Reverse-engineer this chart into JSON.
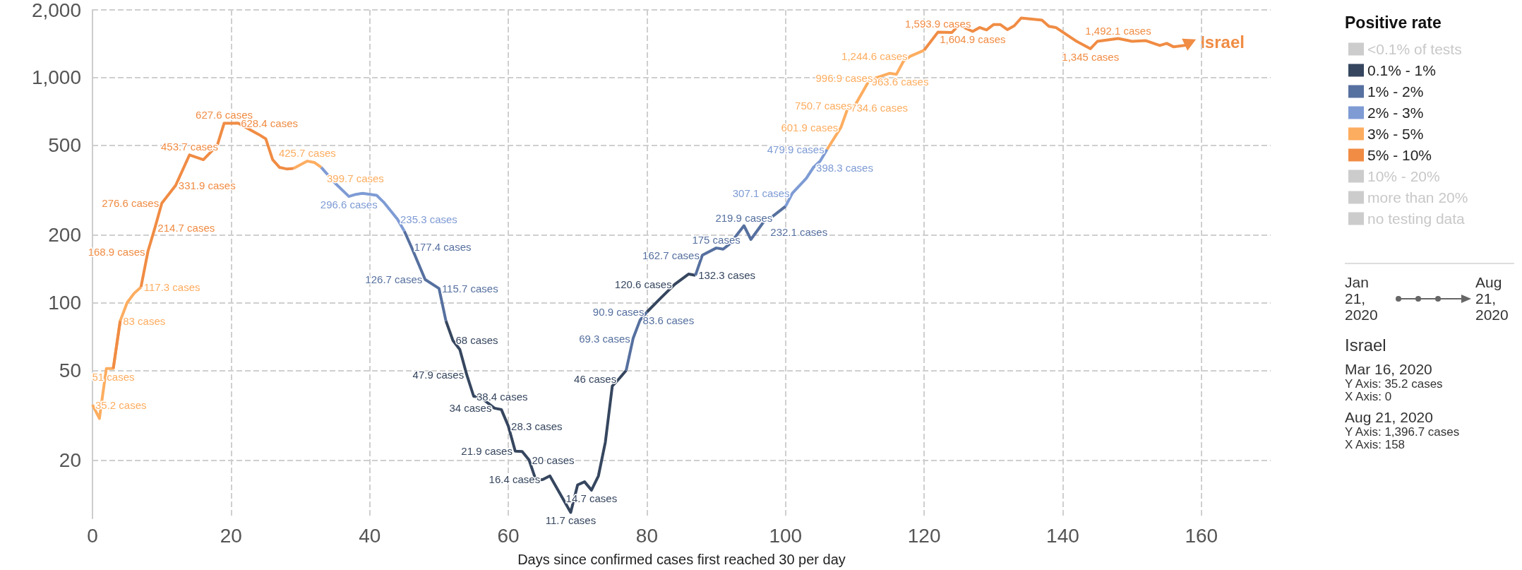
{
  "chart_data": {
    "type": "line",
    "xlabel": "Days since confirmed cases first reached 30 per day",
    "legend_title": "Positive rate",
    "legend": "right",
    "log": true,
    "grid": true,
    "xlim": [
      0,
      170
    ],
    "xticks": [
      0,
      20,
      40,
      60,
      80,
      100,
      120,
      140,
      160
    ],
    "ylim": [
      11,
      2000
    ],
    "yticks": [
      20,
      50,
      100,
      200,
      500,
      {
        "value": 1000,
        "label": "1,000"
      },
      {
        "value": 2000,
        "label": "2,000"
      }
    ],
    "series": [
      {
        "name": "<0.1% of tests",
        "color": "#cccccc"
      },
      {
        "name": "0.1% - 1%",
        "color": "#36465f",
        "x": [
          51,
          52,
          53,
          54,
          55,
          56,
          58,
          59,
          60,
          61,
          62,
          63,
          64,
          65,
          66,
          69,
          70,
          71,
          72,
          73,
          74,
          75,
          76,
          77,
          78,
          80,
          82,
          84,
          86,
          87
        ],
        "values": [
          83,
          68,
          62,
          47.9,
          38.4,
          38,
          34,
          33.5,
          28.3,
          21.9,
          21.8,
          20,
          16.2,
          16.4,
          17,
          11.7,
          15.5,
          16,
          14.7,
          17,
          24,
          42.6,
          46,
          50,
          null,
          90.9,
          105,
          120.6,
          134,
          132.3
        ],
        "value_labels": [
          null,
          "68 cases",
          null,
          "47.9 cases",
          "38.4 cases",
          null,
          "34 cases",
          null,
          "28.3 cases",
          "21.9 cases",
          null,
          "20 cases",
          null,
          "16.4 cases",
          null,
          "11.7 cases",
          null,
          null,
          "14.7 cases",
          null,
          null,
          null,
          "46 cases",
          null,
          null,
          null,
          null,
          "120.6 cases",
          null,
          "132.3 cases"
        ]
      },
      {
        "name": "1% - 2%",
        "color": "#56709f",
        "x": [
          45,
          46,
          47,
          48,
          50,
          51,
          60,
          77,
          78,
          79,
          80,
          84,
          87,
          88,
          90,
          91,
          92,
          94,
          95,
          97,
          98,
          100
        ],
        "values": [
          208,
          177.4,
          150,
          126.7,
          115.7,
          83,
          null,
          50,
          69.3,
          83.6,
          90.9,
          null,
          132.3,
          162.7,
          175,
          173,
          183,
          219.9,
          191,
          232.1,
          240,
          268
        ],
        "value_labels": [
          null,
          "177.4 cases",
          null,
          "126.7 cases",
          "115.7 cases",
          null,
          null,
          null,
          "69.3 cases",
          "83.6 cases",
          "90.9 cases",
          null,
          null,
          "162.7 cases",
          "175 cases",
          null,
          null,
          "219.9 cases",
          null,
          "232.1 cases",
          null,
          null
        ]
      },
      {
        "name": "2% - 3%",
        "color": "#7e9bd4",
        "x": [
          33,
          35,
          37,
          38,
          39,
          41,
          42,
          44,
          45,
          70,
          100,
          101,
          103,
          104,
          105,
          106
        ],
        "values": [
          399.7,
          340,
          296.6,
          303,
          306,
          300,
          280,
          235.3,
          208,
          null,
          268,
          307.1,
          357,
          398.3,
          426,
          479.9
        ],
        "value_labels": [
          null,
          null,
          "296.6 cases",
          null,
          null,
          null,
          null,
          "235.3 cases",
          null,
          null,
          null,
          "307.1 cases",
          null,
          "398.3 cases",
          null,
          "479.9 cases"
        ]
      },
      {
        "name": "3% - 5%",
        "color": "#fdad60",
        "x": [
          0,
          1,
          2,
          3,
          4,
          5,
          6,
          7,
          16,
          29,
          31,
          32,
          33,
          70,
          106,
          108,
          109,
          110,
          112,
          113,
          115,
          116,
          117,
          118,
          120
        ],
        "values": [
          35.2,
          30.6,
          51,
          51,
          83,
          100,
          110,
          117.3,
          null,
          395,
          425.7,
          420,
          399.7,
          null,
          479.9,
          601.9,
          734.6,
          750.7,
          963.6,
          996.9,
          1045,
          1035,
          1180,
          1244.6,
          1324
        ],
        "value_labels": [
          "35.2 cases",
          null,
          null,
          "51 cases",
          "83 cases",
          null,
          null,
          "117.3 cases",
          null,
          null,
          "425.7 cases",
          null,
          "399.7 cases",
          null,
          null,
          "601.9 cases",
          "734.6 cases",
          "750.7 cases",
          "963.6 cases",
          "996.9 cases",
          null,
          null,
          null,
          "1,244.6 cases",
          null
        ]
      },
      {
        "name": "5% - 10%",
        "color": "#f08c44",
        "x": [
          3,
          4,
          6,
          7,
          8,
          9,
          10,
          12,
          14,
          16,
          18,
          19,
          20,
          21,
          24,
          25,
          26,
          27,
          28,
          29,
          70,
          120,
          122,
          124,
          125,
          127,
          128,
          129,
          130,
          131,
          132,
          133,
          134,
          137,
          138,
          139,
          142,
          144,
          145,
          148,
          150,
          152,
          154,
          155,
          156,
          158
        ],
        "values": [
          51,
          83,
          null,
          117.3,
          168.9,
          214.7,
          276.6,
          331.9,
          453.7,
          432,
          500,
          627.6,
          627,
          628.4,
          559,
          535,
          432,
          399,
          393,
          395,
          null,
          1324,
          1593.9,
          1587,
          1712,
          1604.9,
          1670,
          1630,
          1720,
          1720,
          1635,
          1700,
          1840,
          1800,
          1690,
          1670,
          1450,
          1345,
          1450,
          1492.1,
          1450,
          1460,
          1390,
          1420,
          1370,
          1396.7
        ],
        "value_labels": [
          null,
          null,
          null,
          null,
          "168.9 cases",
          "214.7 cases",
          "276.6 cases",
          "331.9 cases",
          "453.7 cases",
          null,
          null,
          "627.6 cases",
          null,
          "628.4 cases",
          null,
          null,
          null,
          null,
          null,
          null,
          null,
          null,
          "1,593.9 cases",
          null,
          null,
          "1,604.9 cases",
          null,
          null,
          null,
          null,
          null,
          null,
          null,
          null,
          null,
          null,
          null,
          "1,345 cases",
          null,
          "1,492.1 cases",
          null,
          null,
          null,
          null,
          null,
          null
        ]
      },
      {
        "name": "10% - 20%",
        "color": "#cccccc"
      },
      {
        "name": "more than 20%",
        "color": "#cccccc"
      },
      {
        "name": "no testing data",
        "color": "#cccccc"
      }
    ],
    "annotations": [
      {
        "text": "Israel",
        "x": 158,
        "y": 1396.7
      },
      "Jan 21, 2020",
      "Aug 21, 2020",
      "Israel",
      "Mar 16, 2020",
      "Y Axis: 35.2 cases",
      "X Axis: 0",
      "Aug 21, 2020",
      "Y Axis: 1,396.7 cases",
      "X Axis: 158"
    ]
  }
}
